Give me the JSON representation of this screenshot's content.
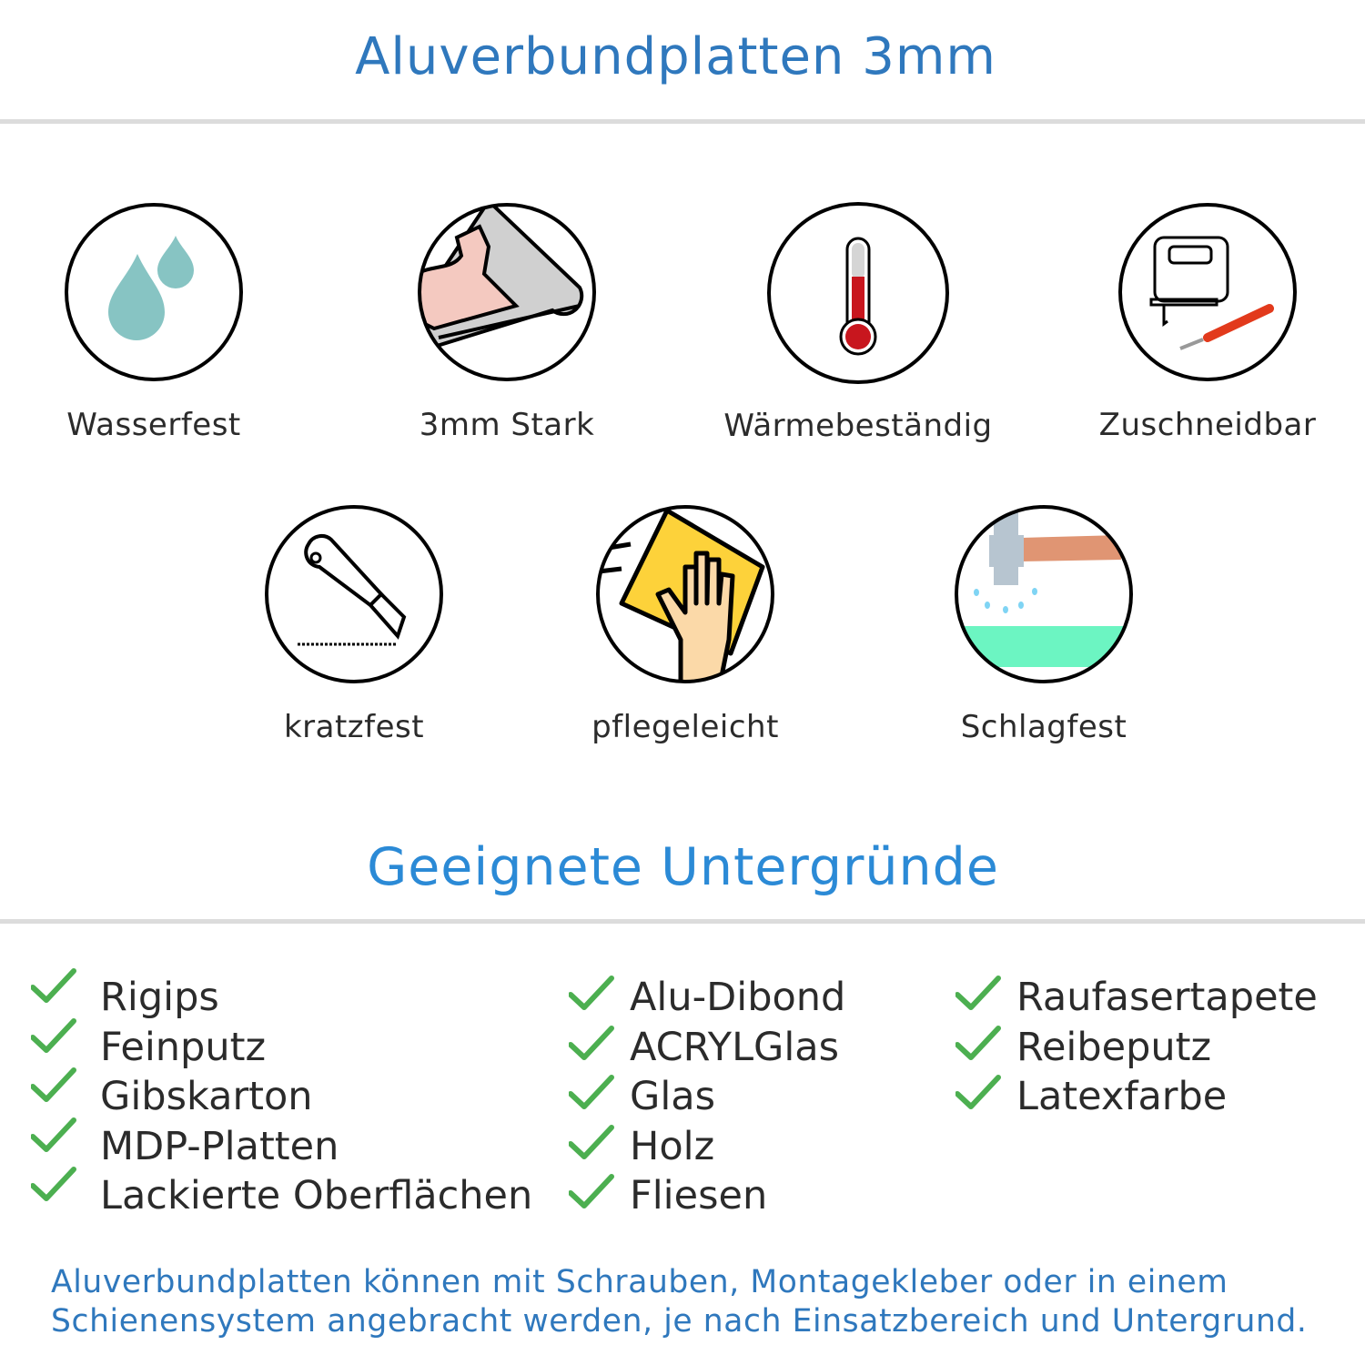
{
  "header": {
    "title": "Aluverbundplatten 3mm"
  },
  "features": [
    {
      "label": "Wasserfest",
      "icon": "water-drops-icon"
    },
    {
      "label": "3mm Stark",
      "icon": "muscle-arm-icon"
    },
    {
      "label": "Wärmebeständig",
      "icon": "thermometer-icon"
    },
    {
      "label": "Zuschneidbar",
      "icon": "jigsaw-knife-icon"
    },
    {
      "label": "kratzfest",
      "icon": "cutter-knife-icon"
    },
    {
      "label": "pflegeleicht",
      "icon": "hand-cloth-icon"
    },
    {
      "label": "Schlagfest",
      "icon": "hammer-icon"
    }
  ],
  "surfaces": {
    "title": "Geeignete Untergründe",
    "columns": [
      [
        "Rigips",
        "Feinputz",
        "Gibskarton",
        "MDP-Platten",
        "Lackierte Oberflächen"
      ],
      [
        "Alu-Dibond",
        "ACRYLGlas",
        "Glas",
        "Holz",
        "Fliesen"
      ],
      [
        "Raufasertapete",
        "Reibeputz",
        "Latexfarbe"
      ]
    ]
  },
  "footer": {
    "line1": "Aluverbundplatten können mit Schrauben, Montagekleber oder in einem",
    "line2": "Schienensystem angebracht werden, je nach Einsatzbereich und Untergrund."
  },
  "colors": {
    "title": "#2f78bd",
    "subtitle": "#2b8ad6",
    "check": "#4caf50",
    "text": "#2b2b2b"
  }
}
